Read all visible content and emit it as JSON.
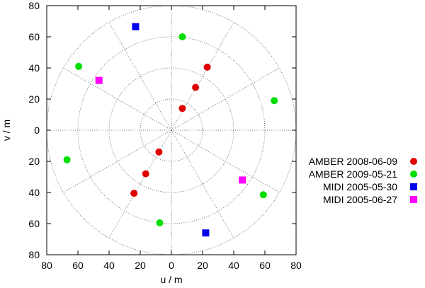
{
  "chart_data": {
    "type": "scatter",
    "title": "",
    "xlabel": "u / m",
    "ylabel": "v / m",
    "xlim": [
      -80,
      80
    ],
    "ylim": [
      -80,
      80
    ],
    "x_tick_labels": [
      "80",
      "60",
      "40",
      "20",
      "0",
      "20",
      "40",
      "60",
      "80"
    ],
    "y_tick_labels": [
      "80",
      "60",
      "40",
      "20",
      "0",
      "20",
      "40",
      "60",
      "80"
    ],
    "grid": "polar",
    "grid_circle_radii": [
      20,
      40,
      60,
      80
    ],
    "grid_spoke_angles_deg": [
      0,
      30,
      60,
      90,
      120,
      150,
      180,
      210,
      240,
      270,
      300,
      330
    ],
    "legend_position": "right",
    "series": [
      {
        "name": "AMBER 2008-06-09",
        "marker": "circle",
        "color": "#e00000",
        "points": [
          {
            "x": 7,
            "y": 14
          },
          {
            "x": 15.5,
            "y": 27.5
          },
          {
            "x": 23,
            "y": 40.5
          },
          {
            "x": -8,
            "y": -14
          },
          {
            "x": -16.5,
            "y": -28
          },
          {
            "x": -24,
            "y": -40.5
          }
        ]
      },
      {
        "name": "AMBER 2009-05-21",
        "marker": "circle",
        "color": "#00dd00",
        "points": [
          {
            "x": 7,
            "y": 60
          },
          {
            "x": -59.5,
            "y": 41
          },
          {
            "x": 66,
            "y": 19
          },
          {
            "x": -67,
            "y": -19
          },
          {
            "x": 59,
            "y": -41.5
          },
          {
            "x": -7.5,
            "y": -59.5
          }
        ]
      },
      {
        "name": "MIDI 2005-05-30",
        "marker": "square",
        "color": "#0000ee",
        "points": [
          {
            "x": -23,
            "y": 66.5
          },
          {
            "x": 22,
            "y": -66
          }
        ]
      },
      {
        "name": "MIDI 2005-06-27",
        "marker": "square",
        "color": "#ff00ff",
        "points": [
          {
            "x": -46.5,
            "y": 32
          },
          {
            "x": 45.5,
            "y": -32
          }
        ]
      }
    ]
  }
}
